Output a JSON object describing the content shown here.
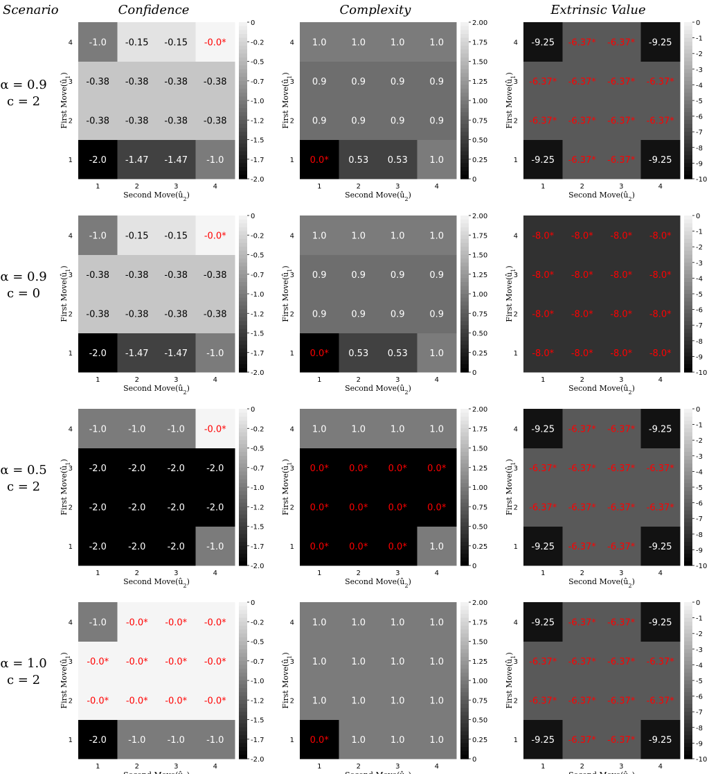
{
  "header": {
    "scenario_label": "Scenario",
    "column_titles": [
      "Confidence",
      "Complexity",
      "Extrinsic Value"
    ]
  },
  "axes": {
    "xlabel_prefix": "Second Move",
    "xlabel_var": "û",
    "xlabel_sub": "2",
    "ylabel_prefix": "First Move",
    "ylabel_var": "û",
    "ylabel_sub": "1",
    "tick_labels": [
      "1",
      "2",
      "3",
      "4"
    ]
  },
  "scenarios": [
    {
      "alpha": "α = 0.9",
      "c": "c = 2"
    },
    {
      "alpha": "α = 0.9",
      "c": "c = 0"
    },
    {
      "alpha": "α = 0.5",
      "c": "c = 2"
    },
    {
      "alpha": "α = 1.0",
      "c": "c = 2"
    }
  ],
  "colors": {
    "highlight_text": "#ff0000",
    "light_text": "#ffffff",
    "dark_text": "#000000",
    "colormap": "gray"
  },
  "chart_data": [
    {
      "type": "heatmap",
      "panel": "confidence",
      "scenario": 0,
      "x": [
        "1",
        "2",
        "3",
        "4"
      ],
      "y": [
        "1",
        "2",
        "3",
        "4"
      ],
      "values": [
        [
          -2.0,
          -1.47,
          -1.47,
          -1.0
        ],
        [
          -0.38,
          -0.38,
          -0.38,
          -0.38
        ],
        [
          -0.38,
          -0.38,
          -0.38,
          -0.38
        ],
        [
          -1.0,
          -0.15,
          -0.15,
          -0.0
        ]
      ],
      "labels": [
        [
          "-2.0",
          "-1.47",
          "-1.47",
          "-1.0"
        ],
        [
          "-0.38",
          "-0.38",
          "-0.38",
          "-0.38"
        ],
        [
          "-0.38",
          "-0.38",
          "-0.38",
          "-0.38"
        ],
        [
          "-1.0",
          "-0.15",
          "-0.15",
          "-0.0*"
        ]
      ],
      "vmin": -2.0,
      "vmax": 0.0,
      "colorbar_ticks": [
        "0",
        "-0.2",
        "-0.5",
        "-0.7",
        "-1.0",
        "-1.2",
        "-1.5",
        "-1.7",
        "-2.0"
      ]
    },
    {
      "type": "heatmap",
      "panel": "complexity",
      "scenario": 0,
      "x": [
        "1",
        "2",
        "3",
        "4"
      ],
      "y": [
        "1",
        "2",
        "3",
        "4"
      ],
      "values": [
        [
          0.0,
          0.53,
          0.53,
          1.0
        ],
        [
          0.9,
          0.9,
          0.9,
          0.9
        ],
        [
          0.9,
          0.9,
          0.9,
          0.9
        ],
        [
          1.0,
          1.0,
          1.0,
          1.0
        ]
      ],
      "labels": [
        [
          "0.0*",
          "0.53",
          "0.53",
          "1.0"
        ],
        [
          "0.9",
          "0.9",
          "0.9",
          "0.9"
        ],
        [
          "0.9",
          "0.9",
          "0.9",
          "0.9"
        ],
        [
          "1.0",
          "1.0",
          "1.0",
          "1.0"
        ]
      ],
      "vmin": 0.0,
      "vmax": 2.0,
      "colorbar_ticks": [
        "2.00",
        "1.75",
        "1.50",
        "1.25",
        "1.00",
        "0.75",
        "0.50",
        "0.25",
        "0"
      ]
    },
    {
      "type": "heatmap",
      "panel": "extrinsic",
      "scenario": 0,
      "x": [
        "1",
        "2",
        "3",
        "4"
      ],
      "y": [
        "1",
        "2",
        "3",
        "4"
      ],
      "values": [
        [
          -9.25,
          -6.37,
          -6.37,
          -9.25
        ],
        [
          -6.37,
          -6.37,
          -6.37,
          -6.37
        ],
        [
          -6.37,
          -6.37,
          -6.37,
          -6.37
        ],
        [
          -9.25,
          -6.37,
          -6.37,
          -9.25
        ]
      ],
      "labels": [
        [
          "-9.25",
          "-6.37*",
          "-6.37*",
          "-9.25"
        ],
        [
          "-6.37*",
          "-6.37*",
          "-6.37*",
          "-6.37*"
        ],
        [
          "-6.37*",
          "-6.37*",
          "-6.37*",
          "-6.37*"
        ],
        [
          "-9.25",
          "-6.37*",
          "-6.37*",
          "-9.25"
        ]
      ],
      "vmin": -10,
      "vmax": 0,
      "colorbar_ticks": [
        "0",
        "-1",
        "-2",
        "-3",
        "-4",
        "-5",
        "-6",
        "-7",
        "-8",
        "-9",
        "-10"
      ]
    },
    {
      "type": "heatmap",
      "panel": "confidence",
      "scenario": 1,
      "x": [
        "1",
        "2",
        "3",
        "4"
      ],
      "y": [
        "1",
        "2",
        "3",
        "4"
      ],
      "values": [
        [
          -2.0,
          -1.47,
          -1.47,
          -1.0
        ],
        [
          -0.38,
          -0.38,
          -0.38,
          -0.38
        ],
        [
          -0.38,
          -0.38,
          -0.38,
          -0.38
        ],
        [
          -1.0,
          -0.15,
          -0.15,
          -0.0
        ]
      ],
      "labels": [
        [
          "-2.0",
          "-1.47",
          "-1.47",
          "-1.0"
        ],
        [
          "-0.38",
          "-0.38",
          "-0.38",
          "-0.38"
        ],
        [
          "-0.38",
          "-0.38",
          "-0.38",
          "-0.38"
        ],
        [
          "-1.0",
          "-0.15",
          "-0.15",
          "-0.0*"
        ]
      ],
      "vmin": -2.0,
      "vmax": 0.0,
      "colorbar_ticks": [
        "0",
        "-0.2",
        "-0.5",
        "-0.7",
        "-1.0",
        "-1.2",
        "-1.5",
        "-1.7",
        "-2.0"
      ]
    },
    {
      "type": "heatmap",
      "panel": "complexity",
      "scenario": 1,
      "x": [
        "1",
        "2",
        "3",
        "4"
      ],
      "y": [
        "1",
        "2",
        "3",
        "4"
      ],
      "values": [
        [
          0.0,
          0.53,
          0.53,
          1.0
        ],
        [
          0.9,
          0.9,
          0.9,
          0.9
        ],
        [
          0.9,
          0.9,
          0.9,
          0.9
        ],
        [
          1.0,
          1.0,
          1.0,
          1.0
        ]
      ],
      "labels": [
        [
          "0.0*",
          "0.53",
          "0.53",
          "1.0"
        ],
        [
          "0.9",
          "0.9",
          "0.9",
          "0.9"
        ],
        [
          "0.9",
          "0.9",
          "0.9",
          "0.9"
        ],
        [
          "1.0",
          "1.0",
          "1.0",
          "1.0"
        ]
      ],
      "vmin": 0.0,
      "vmax": 2.0,
      "colorbar_ticks": [
        "2.00",
        "1.75",
        "1.50",
        "1.25",
        "1.00",
        "0.75",
        "0.50",
        "0.25",
        "0"
      ]
    },
    {
      "type": "heatmap",
      "panel": "extrinsic",
      "scenario": 1,
      "x": [
        "1",
        "2",
        "3",
        "4"
      ],
      "y": [
        "1",
        "2",
        "3",
        "4"
      ],
      "values": [
        [
          -8.0,
          -8.0,
          -8.0,
          -8.0
        ],
        [
          -8.0,
          -8.0,
          -8.0,
          -8.0
        ],
        [
          -8.0,
          -8.0,
          -8.0,
          -8.0
        ],
        [
          -8.0,
          -8.0,
          -8.0,
          -8.0
        ]
      ],
      "labels": [
        [
          "-8.0*",
          "-8.0*",
          "-8.0*",
          "-8.0*"
        ],
        [
          "-8.0*",
          "-8.0*",
          "-8.0*",
          "-8.0*"
        ],
        [
          "-8.0*",
          "-8.0*",
          "-8.0*",
          "-8.0*"
        ],
        [
          "-8.0*",
          "-8.0*",
          "-8.0*",
          "-8.0*"
        ]
      ],
      "vmin": -10,
      "vmax": 0,
      "colorbar_ticks": [
        "0",
        "-1",
        "-2",
        "-3",
        "-4",
        "-5",
        "-6",
        "-7",
        "-8",
        "-9",
        "-10"
      ]
    },
    {
      "type": "heatmap",
      "panel": "confidence",
      "scenario": 2,
      "x": [
        "1",
        "2",
        "3",
        "4"
      ],
      "y": [
        "1",
        "2",
        "3",
        "4"
      ],
      "values": [
        [
          -2.0,
          -2.0,
          -2.0,
          -1.0
        ],
        [
          -2.0,
          -2.0,
          -2.0,
          -2.0
        ],
        [
          -2.0,
          -2.0,
          -2.0,
          -2.0
        ],
        [
          -1.0,
          -1.0,
          -1.0,
          -0.0
        ]
      ],
      "labels": [
        [
          "-2.0",
          "-2.0",
          "-2.0",
          "-1.0"
        ],
        [
          "-2.0",
          "-2.0",
          "-2.0",
          "-2.0"
        ],
        [
          "-2.0",
          "-2.0",
          "-2.0",
          "-2.0"
        ],
        [
          "-1.0",
          "-1.0",
          "-1.0",
          "-0.0*"
        ]
      ],
      "vmin": -2.0,
      "vmax": 0.0,
      "colorbar_ticks": [
        "0",
        "-0.2",
        "-0.5",
        "-0.7",
        "-1.0",
        "-1.2",
        "-1.5",
        "-1.7",
        "-2.0"
      ]
    },
    {
      "type": "heatmap",
      "panel": "complexity",
      "scenario": 2,
      "x": [
        "1",
        "2",
        "3",
        "4"
      ],
      "y": [
        "1",
        "2",
        "3",
        "4"
      ],
      "values": [
        [
          0.0,
          0.0,
          0.0,
          1.0
        ],
        [
          0.0,
          0.0,
          0.0,
          0.0
        ],
        [
          0.0,
          0.0,
          0.0,
          0.0
        ],
        [
          1.0,
          1.0,
          1.0,
          1.0
        ]
      ],
      "labels": [
        [
          "0.0*",
          "0.0*",
          "0.0*",
          "1.0"
        ],
        [
          "0.0*",
          "0.0*",
          "0.0*",
          "0.0*"
        ],
        [
          "0.0*",
          "0.0*",
          "0.0*",
          "0.0*"
        ],
        [
          "1.0",
          "1.0",
          "1.0",
          "1.0"
        ]
      ],
      "vmin": 0.0,
      "vmax": 2.0,
      "colorbar_ticks": [
        "2.00",
        "1.75",
        "1.50",
        "1.25",
        "1.00",
        "0.75",
        "0.50",
        "0.25",
        "0"
      ]
    },
    {
      "type": "heatmap",
      "panel": "extrinsic",
      "scenario": 2,
      "x": [
        "1",
        "2",
        "3",
        "4"
      ],
      "y": [
        "1",
        "2",
        "3",
        "4"
      ],
      "values": [
        [
          -9.25,
          -6.37,
          -6.37,
          -9.25
        ],
        [
          -6.37,
          -6.37,
          -6.37,
          -6.37
        ],
        [
          -6.37,
          -6.37,
          -6.37,
          -6.37
        ],
        [
          -9.25,
          -6.37,
          -6.37,
          -9.25
        ]
      ],
      "labels": [
        [
          "-9.25",
          "-6.37*",
          "-6.37*",
          "-9.25"
        ],
        [
          "-6.37*",
          "-6.37*",
          "-6.37*",
          "-6.37*"
        ],
        [
          "-6.37*",
          "-6.37*",
          "-6.37*",
          "-6.37*"
        ],
        [
          "-9.25",
          "-6.37*",
          "-6.37*",
          "-9.25"
        ]
      ],
      "vmin": -10,
      "vmax": 0,
      "colorbar_ticks": [
        "0",
        "-1",
        "-2",
        "-3",
        "-4",
        "-5",
        "-6",
        "-7",
        "-8",
        "-9",
        "-10"
      ]
    },
    {
      "type": "heatmap",
      "panel": "confidence",
      "scenario": 3,
      "x": [
        "1",
        "2",
        "3",
        "4"
      ],
      "y": [
        "1",
        "2",
        "3",
        "4"
      ],
      "values": [
        [
          -2.0,
          -1.0,
          -1.0,
          -1.0
        ],
        [
          -0.0,
          -0.0,
          -0.0,
          -0.0
        ],
        [
          -0.0,
          -0.0,
          -0.0,
          -0.0
        ],
        [
          -1.0,
          -0.0,
          -0.0,
          -0.0
        ]
      ],
      "labels": [
        [
          "-2.0",
          "-1.0",
          "-1.0",
          "-1.0"
        ],
        [
          "-0.0*",
          "-0.0*",
          "-0.0*",
          "-0.0*"
        ],
        [
          "-0.0*",
          "-0.0*",
          "-0.0*",
          "-0.0*"
        ],
        [
          "-1.0",
          "-0.0*",
          "-0.0*",
          "-0.0*"
        ]
      ],
      "vmin": -2.0,
      "vmax": 0.0,
      "colorbar_ticks": [
        "0",
        "-0.2",
        "-0.5",
        "-0.7",
        "-1.0",
        "-1.2",
        "-1.5",
        "-1.7",
        "-2.0"
      ]
    },
    {
      "type": "heatmap",
      "panel": "complexity",
      "scenario": 3,
      "x": [
        "1",
        "2",
        "3",
        "4"
      ],
      "y": [
        "1",
        "2",
        "3",
        "4"
      ],
      "values": [
        [
          0.0,
          1.0,
          1.0,
          1.0
        ],
        [
          1.0,
          1.0,
          1.0,
          1.0
        ],
        [
          1.0,
          1.0,
          1.0,
          1.0
        ],
        [
          1.0,
          1.0,
          1.0,
          1.0
        ]
      ],
      "labels": [
        [
          "0.0*",
          "1.0",
          "1.0",
          "1.0"
        ],
        [
          "1.0",
          "1.0",
          "1.0",
          "1.0"
        ],
        [
          "1.0",
          "1.0",
          "1.0",
          "1.0"
        ],
        [
          "1.0",
          "1.0",
          "1.0",
          "1.0"
        ]
      ],
      "vmin": 0.0,
      "vmax": 2.0,
      "colorbar_ticks": [
        "2.00",
        "1.75",
        "1.50",
        "1.25",
        "1.00",
        "0.75",
        "0.50",
        "0.25",
        "0"
      ]
    },
    {
      "type": "heatmap",
      "panel": "extrinsic",
      "scenario": 3,
      "x": [
        "1",
        "2",
        "3",
        "4"
      ],
      "y": [
        "1",
        "2",
        "3",
        "4"
      ],
      "values": [
        [
          -9.25,
          -6.37,
          -6.37,
          -9.25
        ],
        [
          -6.37,
          -6.37,
          -6.37,
          -6.37
        ],
        [
          -6.37,
          -6.37,
          -6.37,
          -6.37
        ],
        [
          -9.25,
          -6.37,
          -6.37,
          -9.25
        ]
      ],
      "labels": [
        [
          "-9.25",
          "-6.37*",
          "-6.37*",
          "-9.25"
        ],
        [
          "-6.37*",
          "-6.37*",
          "-6.37*",
          "-6.37*"
        ],
        [
          "-6.37*",
          "-6.37*",
          "-6.37*",
          "-6.37*"
        ],
        [
          "-9.25",
          "-6.37*",
          "-6.37*",
          "-9.25"
        ]
      ],
      "vmin": -10,
      "vmax": 0,
      "colorbar_ticks": [
        "0",
        "-1",
        "-2",
        "-3",
        "-4",
        "-5",
        "-6",
        "-7",
        "-8",
        "-9",
        "-10"
      ]
    }
  ]
}
